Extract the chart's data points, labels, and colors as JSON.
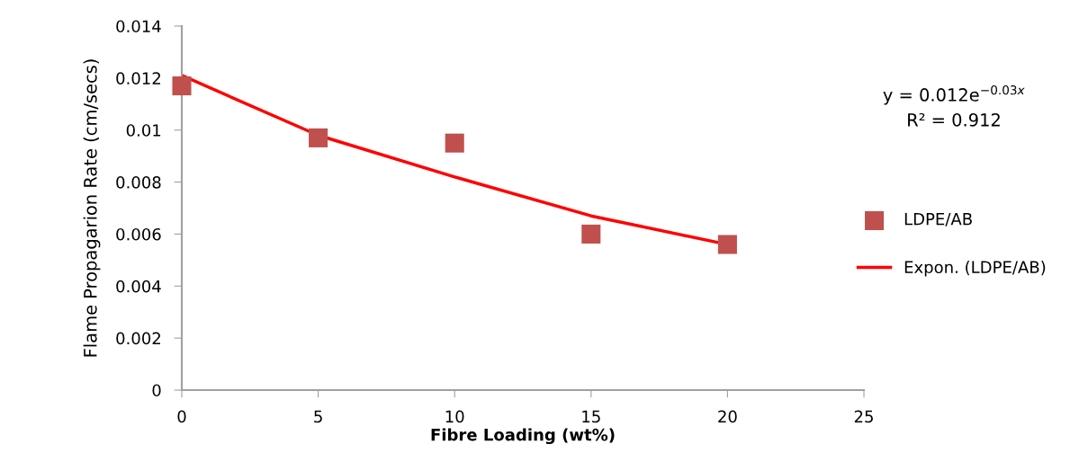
{
  "chart_data": {
    "type": "scatter",
    "xlabel": "Fibre Loading (wt%)",
    "ylabel": "Flame Propagarion Rate (cm/secs)",
    "xlim": [
      0,
      25
    ],
    "xticks": [
      0,
      5,
      10,
      15,
      20,
      25
    ],
    "ylim": [
      0,
      0.014
    ],
    "yticks": [
      0,
      0.002,
      0.004,
      0.006,
      0.008,
      0.01,
      0.012,
      0.014
    ],
    "grid": false,
    "legend": "right",
    "marker": "square",
    "series": [
      {
        "name": "LDPE/AB",
        "color": "#c0504d",
        "x": [
          0,
          5,
          10,
          15,
          20
        ],
        "values": [
          0.0117,
          0.0097,
          0.0095,
          0.006,
          0.0056
        ]
      },
      {
        "name": "Expon. (LDPE/AB)",
        "type": "line",
        "color": "#ff0000",
        "marker": "none",
        "line_style": "solid",
        "x": [
          0,
          5,
          10,
          15,
          20
        ],
        "values": [
          0.0121,
          0.0098,
          0.0082,
          0.0067,
          0.0056
        ]
      }
    ],
    "annotations": [
      "y = 0.012e$^{−0.03x}$\nR² = 0.912"
    ]
  }
}
